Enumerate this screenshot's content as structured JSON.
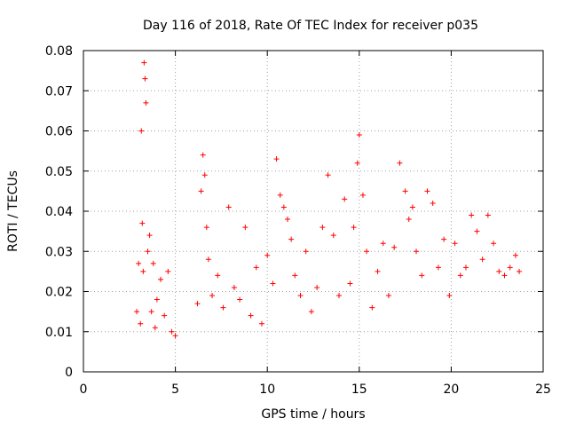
{
  "chart_data": {
    "type": "scatter",
    "title": "Day 116 of 2018, Rate Of TEC Index for receiver p035",
    "xlabel": "GPS time / hours",
    "ylabel": "ROTI / TECUs",
    "xlim": [
      0,
      25
    ],
    "ylim": [
      0,
      0.08
    ],
    "xticks": [
      0,
      5,
      10,
      15,
      20,
      25
    ],
    "xtick_labels": [
      "0",
      "5",
      "10",
      "15",
      "20",
      "25"
    ],
    "yticks": [
      0,
      0.01,
      0.02,
      0.03,
      0.04,
      0.05,
      0.06,
      0.07,
      0.08
    ],
    "ytick_labels": [
      "0",
      "0.01",
      "0.02",
      "0.03",
      "0.04",
      "0.05",
      "0.06",
      "0.07",
      "0.08"
    ],
    "grid": true,
    "marker": "+",
    "color": "#ff0000",
    "series": [
      {
        "name": "ROTI",
        "x": [
          2.9,
          3.0,
          3.1,
          3.15,
          3.2,
          3.25,
          3.3,
          3.35,
          3.4,
          3.5,
          3.6,
          3.7,
          3.8,
          3.9,
          4.0,
          4.2,
          4.4,
          4.6,
          4.8,
          5.0,
          6.2,
          6.4,
          6.5,
          6.6,
          6.7,
          6.8,
          7.0,
          7.3,
          7.6,
          7.9,
          8.2,
          8.5,
          8.8,
          9.1,
          9.4,
          9.7,
          10.0,
          10.3,
          10.5,
          10.7,
          10.9,
          11.1,
          11.3,
          11.5,
          11.8,
          12.1,
          12.4,
          12.7,
          13.0,
          13.3,
          13.6,
          13.9,
          14.2,
          14.5,
          14.7,
          14.9,
          15.0,
          15.2,
          15.4,
          15.7,
          16.0,
          16.3,
          16.6,
          16.9,
          17.2,
          17.5,
          17.7,
          17.9,
          18.1,
          18.4,
          18.7,
          19.0,
          19.3,
          19.6,
          19.9,
          20.2,
          20.5,
          20.8,
          21.1,
          21.4,
          21.7,
          22.0,
          22.3,
          22.6,
          22.9,
          23.2,
          23.5,
          23.7
        ],
        "y": [
          0.015,
          0.027,
          0.012,
          0.06,
          0.037,
          0.025,
          0.077,
          0.073,
          0.067,
          0.03,
          0.034,
          0.015,
          0.027,
          0.011,
          0.018,
          0.023,
          0.014,
          0.025,
          0.01,
          0.009,
          0.017,
          0.045,
          0.054,
          0.049,
          0.036,
          0.028,
          0.019,
          0.024,
          0.016,
          0.041,
          0.021,
          0.018,
          0.036,
          0.014,
          0.026,
          0.012,
          0.029,
          0.022,
          0.053,
          0.044,
          0.041,
          0.038,
          0.033,
          0.024,
          0.019,
          0.03,
          0.015,
          0.021,
          0.036,
          0.049,
          0.034,
          0.019,
          0.043,
          0.022,
          0.036,
          0.052,
          0.059,
          0.044,
          0.03,
          0.016,
          0.025,
          0.032,
          0.019,
          0.031,
          0.052,
          0.045,
          0.038,
          0.041,
          0.03,
          0.024,
          0.045,
          0.042,
          0.026,
          0.033,
          0.019,
          0.032,
          0.024,
          0.026,
          0.039,
          0.035,
          0.028,
          0.039,
          0.032,
          0.025,
          0.024,
          0.026,
          0.029,
          0.025
        ]
      }
    ]
  }
}
